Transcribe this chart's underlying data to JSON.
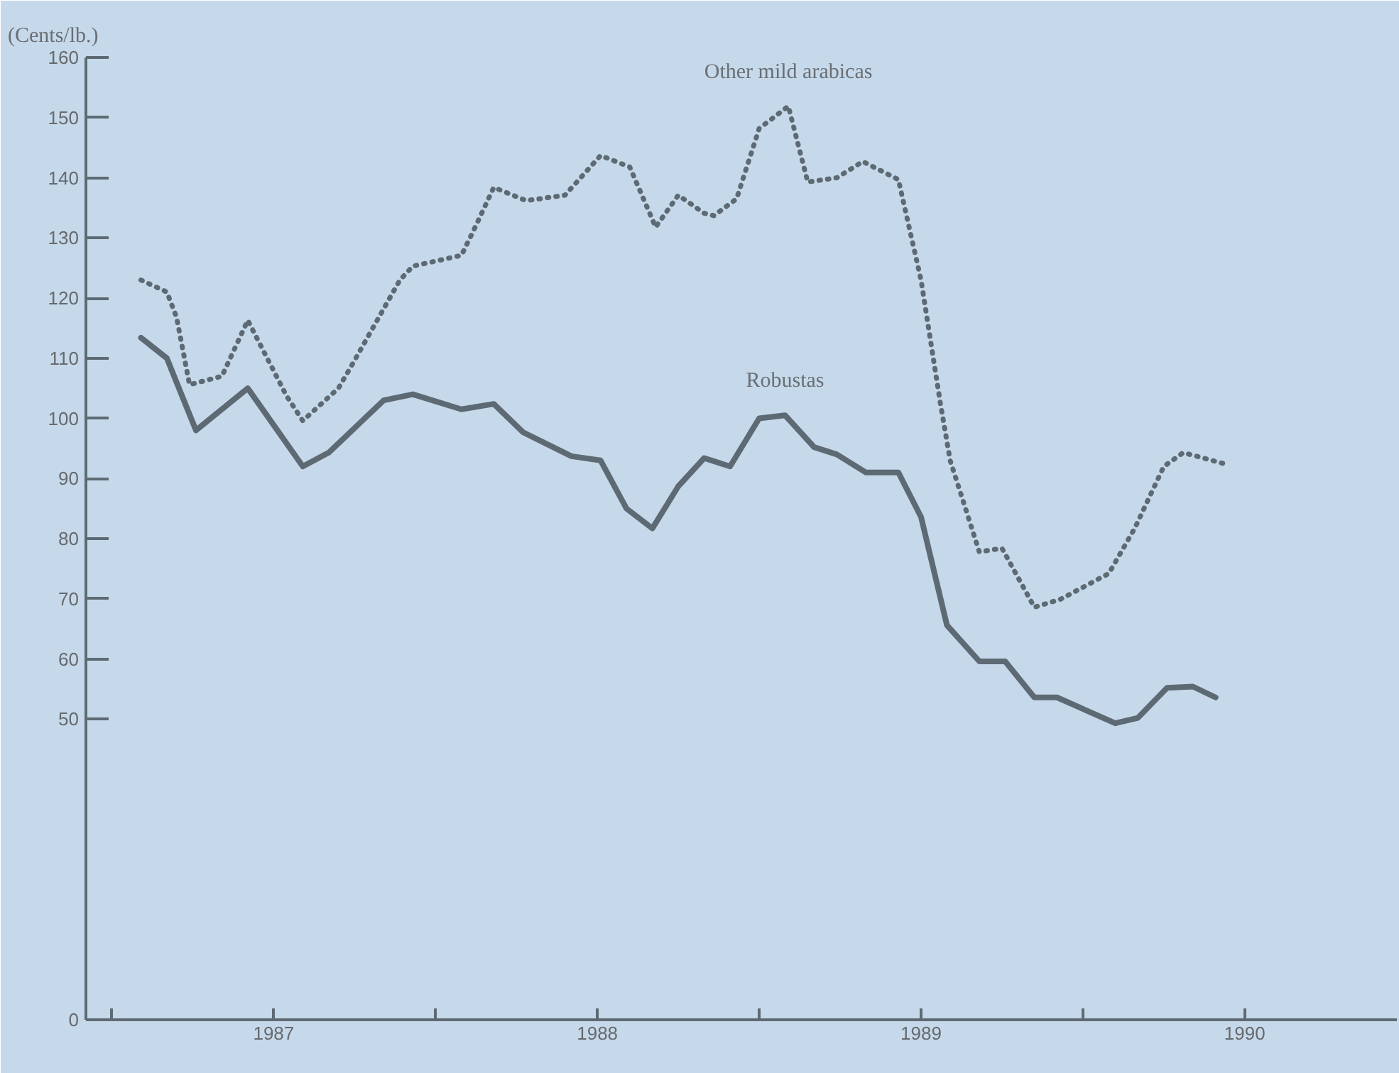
{
  "chart_data": {
    "type": "line",
    "ylabel": "(Cents/lb.)",
    "xlim": [
      1986.42,
      1990.47
    ],
    "ylim": [
      0,
      160
    ],
    "xticks": [
      {
        "value": 1986.5,
        "label": null
      },
      1987,
      {
        "value": 1987.5,
        "label": null
      },
      1988,
      {
        "value": 1988.5,
        "label": null
      },
      1989,
      {
        "value": 1989.5,
        "label": null
      },
      1990
    ],
    "yticks": [
      0,
      50,
      60,
      70,
      80,
      90,
      100,
      110,
      120,
      130,
      140,
      150,
      160
    ],
    "grid": false,
    "series": [
      {
        "name": "Other mild arabicas",
        "color": "#5d6a74",
        "line_style": "dotted",
        "x": [
          1986.59,
          1986.67,
          1986.7,
          1986.74,
          1986.84,
          1986.92,
          1986.98,
          1987.04,
          1987.09,
          1987.2,
          1987.24,
          1987.39,
          1987.43,
          1987.58,
          1987.62,
          1987.68,
          1987.78,
          1987.9,
          1988.01,
          1988.1,
          1988.18,
          1988.25,
          1988.33,
          1988.36,
          1988.43,
          1988.5,
          1988.59,
          1988.65,
          1988.74,
          1988.82,
          1988.93,
          1989.0,
          1989.06,
          1989.09,
          1989.18,
          1989.25,
          1989.35,
          1989.43,
          1989.58,
          1989.66,
          1989.75,
          1989.81,
          1989.94
        ],
        "values": [
          123,
          121,
          116.8,
          105.6,
          107,
          116.3,
          110,
          103.7,
          99.6,
          105,
          108.7,
          123,
          125.3,
          127.1,
          131.5,
          138.4,
          136.2,
          137.1,
          143.7,
          141.8,
          131.8,
          137.1,
          134.1,
          133.7,
          136.5,
          148.2,
          151.9,
          139.3,
          140,
          142.7,
          139.7,
          123,
          102.4,
          93,
          77.8,
          78.4,
          68.6,
          69.9,
          74.2,
          81.7,
          92,
          94.3,
          92.4
        ]
      },
      {
        "name": "Robustas",
        "color": "#5d6a74",
        "line_style": "solid",
        "x": [
          1986.59,
          1986.67,
          1986.76,
          1986.92,
          1987.09,
          1987.17,
          1987.34,
          1987.43,
          1987.58,
          1987.68,
          1987.77,
          1987.92,
          1988.01,
          1988.09,
          1988.17,
          1988.25,
          1988.33,
          1988.41,
          1988.5,
          1988.58,
          1988.67,
          1988.74,
          1988.83,
          1988.93,
          1989.0,
          1989.08,
          1989.18,
          1989.26,
          1989.35,
          1989.42,
          1989.6,
          1989.67,
          1989.76,
          1989.84,
          1989.91
        ],
        "values": [
          113.4,
          110,
          98,
          105,
          92,
          94.3,
          103,
          104,
          101.5,
          102.4,
          97.7,
          93.7,
          93,
          85,
          81.7,
          88.7,
          93.4,
          92,
          100,
          100.5,
          95.2,
          94,
          91,
          91,
          83.6,
          65.6,
          59.6,
          59.6,
          53.6,
          53.6,
          49.3,
          50.2,
          55.2,
          55.4,
          53.6
        ]
      }
    ]
  }
}
